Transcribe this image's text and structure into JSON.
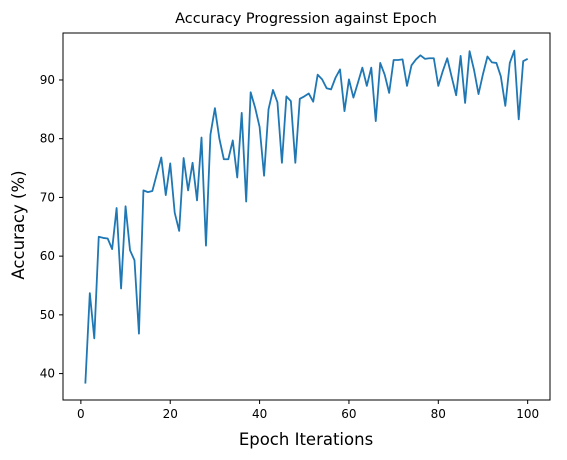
{
  "chart_data": {
    "type": "line",
    "title": "Accuracy Progression against Epoch",
    "xlabel": "Epoch Iterations",
    "ylabel": "Accuracy (%)",
    "xlim": [
      -4,
      105
    ],
    "ylim": [
      35.5,
      98
    ],
    "xticks": [
      0,
      20,
      40,
      60,
      80,
      100
    ],
    "yticks": [
      40,
      50,
      60,
      70,
      80,
      90
    ],
    "grid": false,
    "line_color": "#1f77b4",
    "series": [
      {
        "x": [
          1,
          2,
          3,
          4,
          5,
          6,
          7,
          8,
          9,
          10,
          11,
          12,
          13,
          14,
          15,
          16,
          17,
          18,
          19,
          20,
          21,
          22,
          23,
          24,
          25,
          26,
          27,
          28,
          29,
          30,
          31,
          32,
          33,
          34,
          35,
          36,
          37,
          38,
          39,
          40,
          41,
          42,
          43,
          44,
          45,
          46,
          47,
          48,
          49,
          50,
          51,
          52,
          53,
          54,
          55,
          56,
          57,
          58,
          59,
          60,
          61,
          62,
          63,
          64,
          65,
          66,
          67,
          68,
          69,
          70,
          71,
          72,
          73,
          74,
          75,
          76,
          77,
          78,
          79,
          80,
          81,
          82,
          83,
          84,
          85,
          86,
          87,
          88,
          89,
          90,
          91,
          92,
          93,
          94,
          95,
          96,
          97,
          98,
          99,
          100
        ],
        "values": [
          38.3,
          53.7,
          46.0,
          63.3,
          63.1,
          63.0,
          61.2,
          68.2,
          54.5,
          68.5,
          61.0,
          59.3,
          46.8,
          71.2,
          70.9,
          71.1,
          74.0,
          76.8,
          70.4,
          75.8,
          67.4,
          64.3,
          76.7,
          71.2,
          75.9,
          69.5,
          80.2,
          61.8,
          80.7,
          85.2,
          80.0,
          76.5,
          76.5,
          79.7,
          73.4,
          84.4,
          69.3,
          87.9,
          85.3,
          82.0,
          73.7,
          85.0,
          88.3,
          86.2,
          75.9,
          87.2,
          86.4,
          75.9,
          86.8,
          87.2,
          87.7,
          86.3,
          90.9,
          90.1,
          88.6,
          88.4,
          90.4,
          91.8,
          84.7,
          90.1,
          87.0,
          89.5,
          92.1,
          89.0,
          92.1,
          83.0,
          92.9,
          90.9,
          87.8,
          93.4,
          93.4,
          93.5,
          89.0,
          92.5,
          93.5,
          94.2,
          93.6,
          93.7,
          93.7,
          89.0,
          91.5,
          93.7,
          90.5,
          87.4,
          94.1,
          86.1,
          94.9,
          91.7,
          87.6,
          91.0,
          94.0,
          93.0,
          92.9,
          90.6,
          85.6,
          92.9,
          95.0,
          83.3,
          93.2,
          93.6
        ]
      }
    ]
  }
}
